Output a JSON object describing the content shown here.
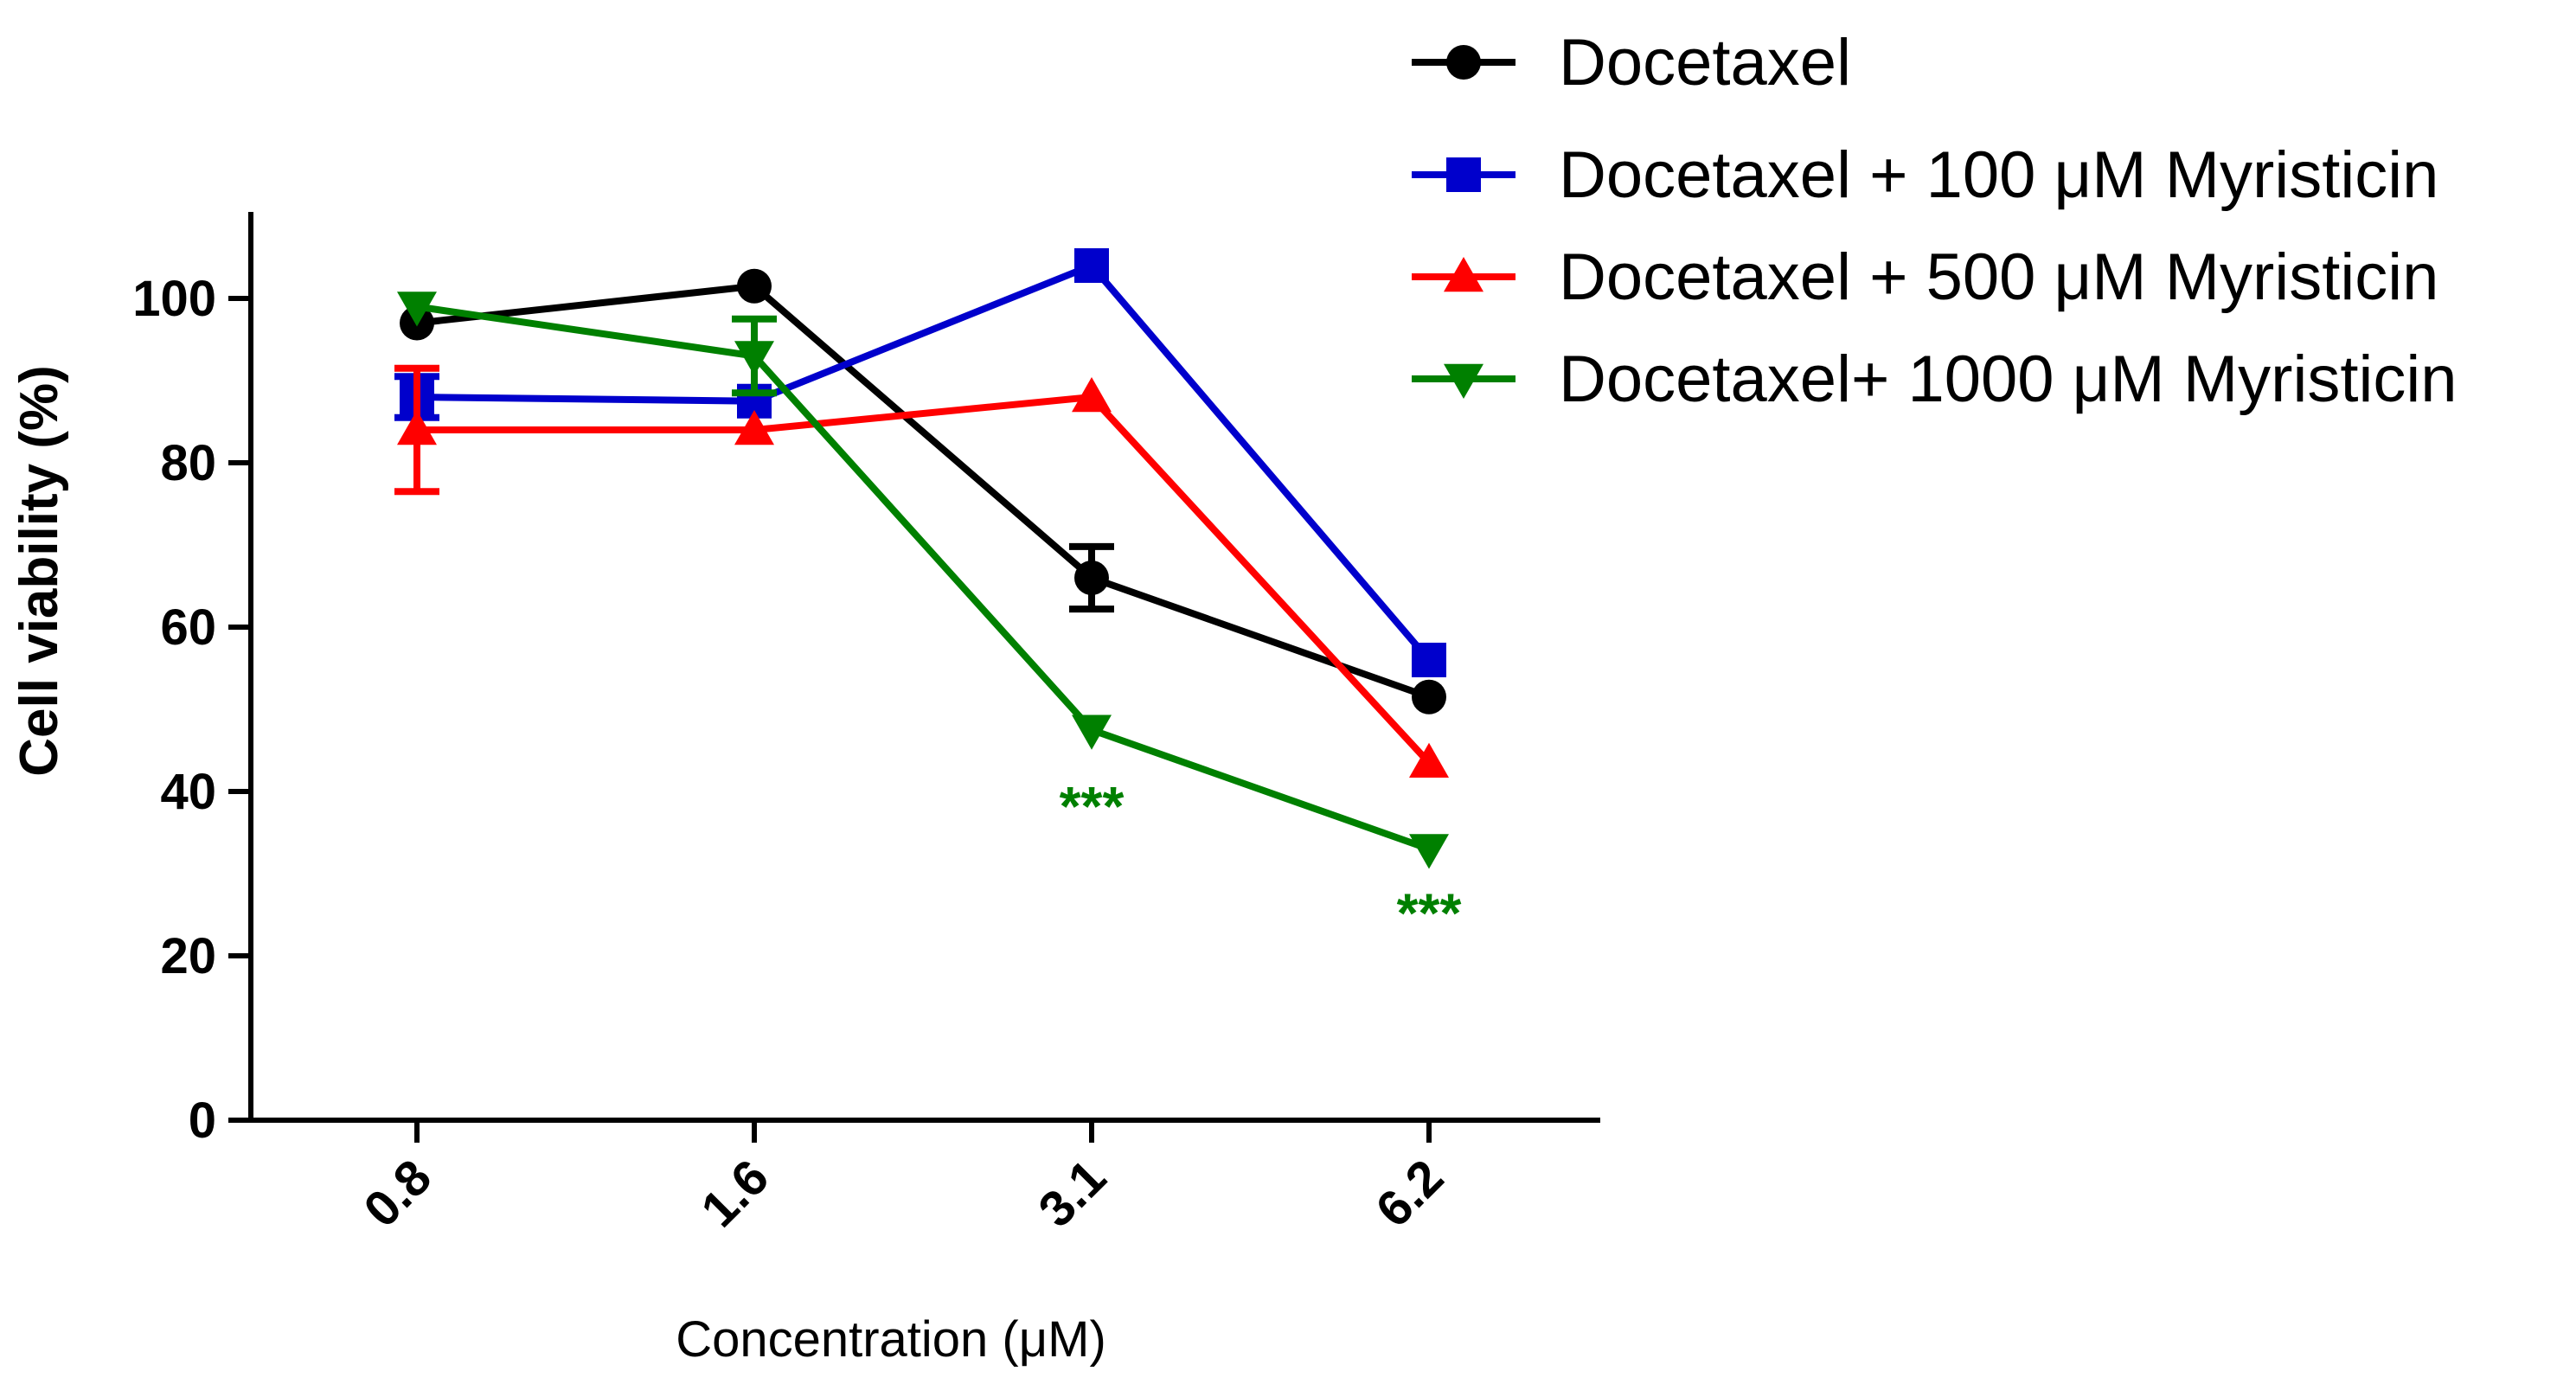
{
  "chart_data": {
    "type": "line",
    "title": "",
    "xlabel": "Concentration (μM)",
    "ylabel": "Cell viability (%)",
    "categories": [
      "0.8",
      "1.6",
      "3.1",
      "6.2"
    ],
    "ylim": [
      0,
      110
    ],
    "yticks": [
      "0",
      "20",
      "40",
      "60",
      "80",
      "100"
    ],
    "grid": false,
    "legend_position": "top-right",
    "series": [
      {
        "name": "Docetaxel",
        "color": "#000000",
        "marker": "circle",
        "values": [
          97,
          101.5,
          66,
          51.5
        ],
        "errors": [
          0,
          0,
          3.8,
          0
        ]
      },
      {
        "name": "Docetaxel + 100 μM Myristicin",
        "color": "#0000cc",
        "marker": "square",
        "values": [
          88,
          87.5,
          104,
          56
        ],
        "errors": [
          2.5,
          0,
          0,
          0
        ]
      },
      {
        "name": "Docetaxel + 500 μM Myristicin",
        "color": "#ff0000",
        "marker": "triangle-up",
        "values": [
          84,
          84,
          88,
          43.5
        ],
        "errors": [
          7.5,
          0,
          0,
          0
        ]
      },
      {
        "name": "Docetaxel+ 1000 μM Myristicin",
        "color": "#008000",
        "marker": "triangle-down",
        "values": [
          99,
          93,
          47.5,
          33
        ],
        "errors": [
          0,
          4.5,
          0,
          0
        ]
      }
    ],
    "annotations": [
      {
        "text": "***",
        "category": "3.1",
        "y": 38,
        "color": "#008000"
      },
      {
        "text": "***",
        "category": "6.2",
        "y": 25,
        "color": "#008000"
      }
    ]
  }
}
